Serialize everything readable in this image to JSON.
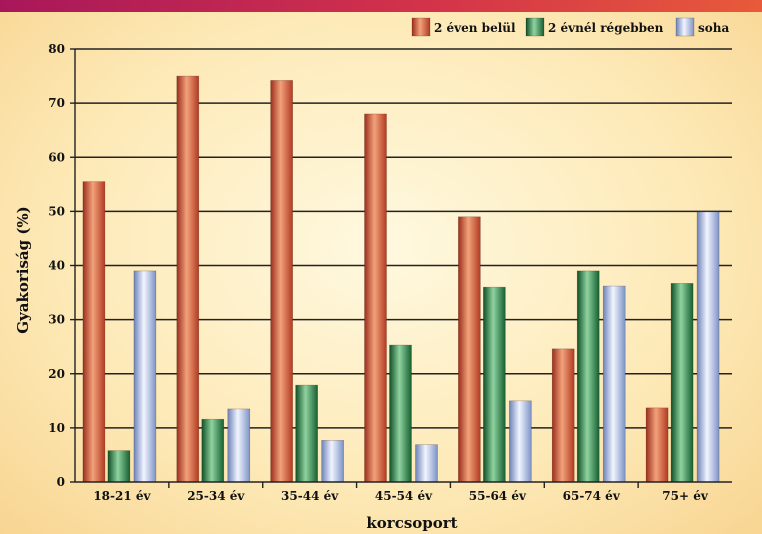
{
  "chart_data": {
    "type": "bar",
    "xlabel": "korcsoport",
    "ylabel": "Gyakoriság (%)",
    "ylim": [
      0,
      80
    ],
    "yticks": [
      0,
      10,
      20,
      30,
      40,
      50,
      60,
      70,
      80
    ],
    "grid": true,
    "legend_position": "top-right",
    "categories": [
      "18-21 év",
      "25-34 év",
      "35-44 év",
      "45-54 év",
      "55-64 év",
      "65-74 év",
      "75+ év"
    ],
    "series": [
      {
        "name": "2 éven belül",
        "color": "#d9573a",
        "values": [
          55.5,
          75,
          74.2,
          68,
          49,
          24.6,
          13.7
        ]
      },
      {
        "name": "2 évnél régebben",
        "color": "#2f8a4a",
        "values": [
          5.8,
          11.6,
          17.9,
          25.3,
          36,
          39,
          36.7
        ]
      },
      {
        "name": "soha",
        "color": "#9db3dd",
        "values": [
          39,
          13.5,
          7.7,
          6.9,
          15,
          36.2,
          49.9
        ]
      }
    ]
  }
}
